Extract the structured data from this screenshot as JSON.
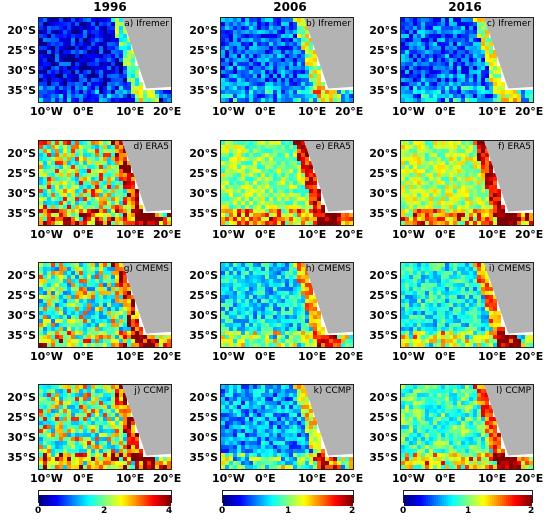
{
  "columns": [
    "1996",
    "2006",
    "2016"
  ],
  "rows": [
    [
      "a) Ifremer",
      "b) Ifremer",
      "c) Ifremer"
    ],
    [
      "d) ERA5",
      "e) ERA5",
      "f) ERA5"
    ],
    [
      "g) CMEMS",
      "h) CMEMS",
      "i) CMEMS"
    ],
    [
      "j) CCMP",
      "k) CCMP",
      "l) CCMP"
    ]
  ],
  "lat_ticks": [
    "20°S",
    "25°S",
    "30°S",
    "35°S"
  ],
  "lon_ticks": [
    "10°W",
    "0°E",
    "10°E",
    "20°E"
  ],
  "colorbars": [
    {
      "ticks": [
        "0",
        "2",
        "4"
      ],
      "values": [
        0,
        2,
        4
      ]
    },
    {
      "ticks": [
        "0",
        "1",
        "2"
      ],
      "values": [
        0,
        1,
        2
      ]
    },
    {
      "ticks": [
        "0",
        "1",
        "2"
      ],
      "values": [
        0,
        1,
        2
      ]
    }
  ],
  "colors": {
    "land": "#b3b3b3",
    "colormap": "jet"
  }
}
